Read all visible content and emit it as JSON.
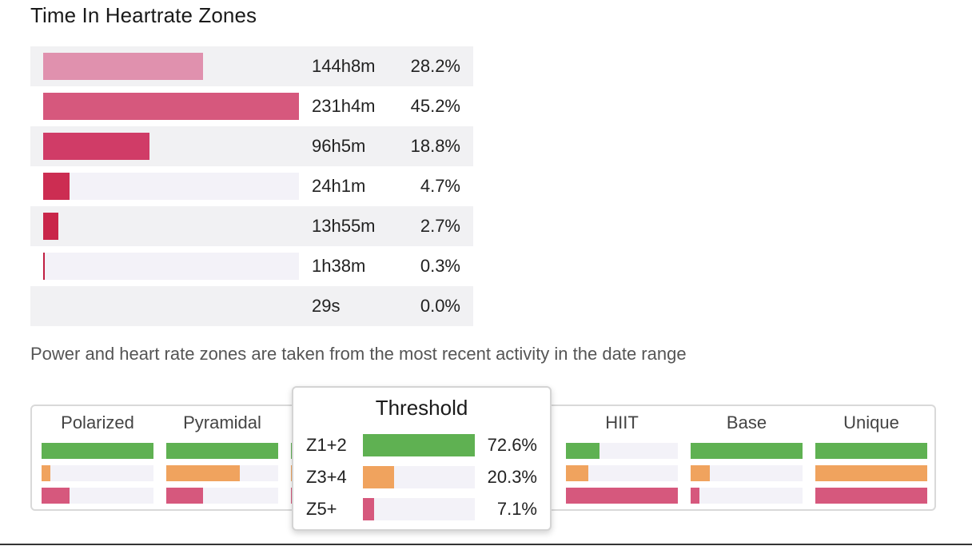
{
  "title": "Time In Heartrate Zones",
  "zones": [
    {
      "time": "144h8m",
      "percent": "28.2%",
      "fraction": 0.282,
      "color": "#e091ae"
    },
    {
      "time": "231h4m",
      "percent": "45.2%",
      "fraction": 0.452,
      "color": "#d6587d"
    },
    {
      "time": "96h5m",
      "percent": "18.8%",
      "fraction": 0.188,
      "color": "#d03c67"
    },
    {
      "time": "24h1m",
      "percent": "4.7%",
      "fraction": 0.047,
      "color": "#cc2d52"
    },
    {
      "time": "13h55m",
      "percent": "2.7%",
      "fraction": 0.027,
      "color": "#c9264a"
    },
    {
      "time": "1h38m",
      "percent": "0.3%",
      "fraction": 0.003,
      "color": "#c01f42"
    },
    {
      "time": "29s",
      "percent": "0.0%",
      "fraction": 0.0,
      "color": "#b01a3a"
    }
  ],
  "note": "Power and heart rate zones are taken from the most recent activity in the date range",
  "colors": {
    "low": "#5fb152",
    "mid": "#f0a35e",
    "high": "#d6587d"
  },
  "distributions": [
    {
      "label": "Polarized",
      "values": [
        1.0,
        0.08,
        0.25
      ]
    },
    {
      "label": "Pyramidal",
      "values": [
        1.0,
        0.66,
        0.33
      ]
    },
    {
      "label": "Threshold",
      "values": [
        0.726,
        0.203,
        0.071
      ]
    },
    {
      "label": "HIIT",
      "values": [
        0.3,
        0.2,
        1.0
      ]
    },
    {
      "label": "Base",
      "values": [
        1.0,
        0.17,
        0.08
      ]
    },
    {
      "label": "Unique",
      "values": [
        1.0,
        1.0,
        1.0
      ]
    }
  ],
  "tooltip": {
    "title": "Threshold",
    "rows": [
      {
        "label": "Z1+2",
        "percent": "72.6%",
        "fraction": 1.0,
        "color": "#5fb152"
      },
      {
        "label": "Z3+4",
        "percent": "20.3%",
        "fraction": 0.28,
        "color": "#f0a35e"
      },
      {
        "label": "Z5+",
        "percent": "7.1%",
        "fraction": 0.098,
        "color": "#d6587d"
      }
    ]
  }
}
